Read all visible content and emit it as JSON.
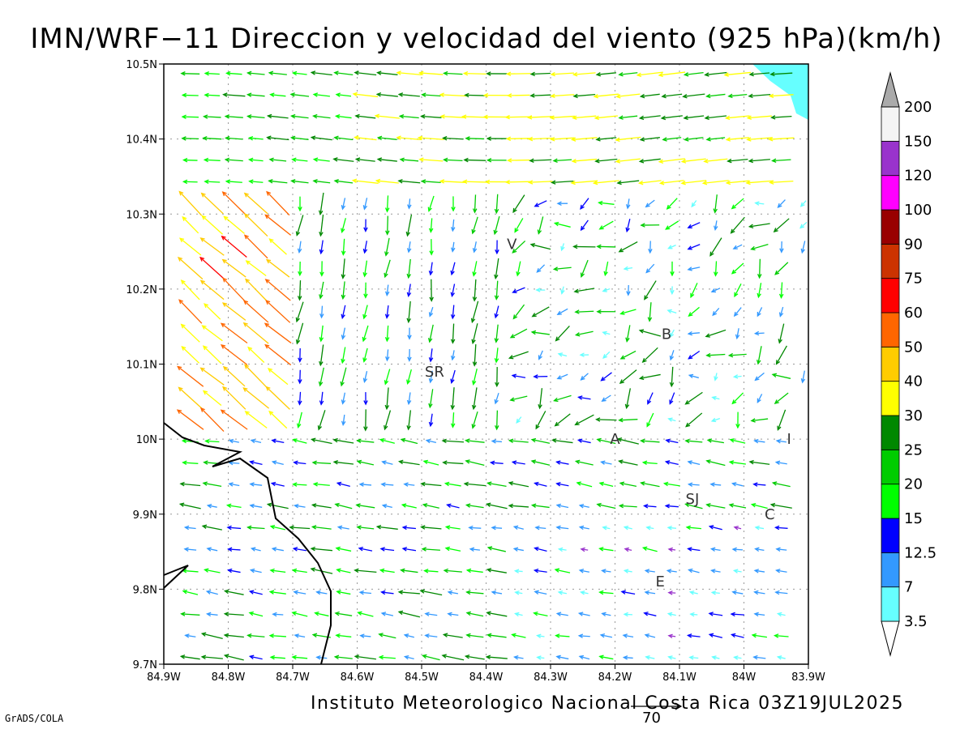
{
  "title": "IMN/WRF−11 Direccion y velocidad del viento (925 hPa)(km/h)",
  "footer": "Instituto Meteorologico Nacional Costa Rica 03Z19JUL2025",
  "credit": "GrADS/COLA",
  "reference_vector": {
    "label": "70",
    "value": 70,
    "unit": "km/h"
  },
  "map": {
    "x_ticks": [
      "84.9W",
      "84.8W",
      "84.7W",
      "84.6W",
      "84.5W",
      "84.4W",
      "84.3W",
      "84.2W",
      "84.1W",
      "84W",
      "83.9W"
    ],
    "y_ticks": [
      "10.5N",
      "10.4N",
      "10.3N",
      "10.2N",
      "10.1N",
      "10N",
      "9.9N",
      "9.8N",
      "9.7N"
    ],
    "lon_range": [
      -84.9,
      -83.9
    ],
    "lat_range": [
      9.7,
      10.5
    ],
    "grid": "dotted"
  },
  "cities": [
    {
      "label": "V",
      "lon": -84.36,
      "lat": 10.26
    },
    {
      "label": "SR",
      "lon": -84.48,
      "lat": 10.09
    },
    {
      "label": "B",
      "lon": -84.12,
      "lat": 10.14
    },
    {
      "label": "A",
      "lon": -84.2,
      "lat": 10.0
    },
    {
      "label": "I",
      "lon": -83.93,
      "lat": 10.0
    },
    {
      "label": "SJ",
      "lon": -84.08,
      "lat": 9.92
    },
    {
      "label": "C",
      "lon": -83.96,
      "lat": 9.9
    },
    {
      "label": "E",
      "lon": -84.13,
      "lat": 9.81
    }
  ],
  "colorbar": {
    "levels": [
      "3.5",
      "7",
      "12.5",
      "15",
      "20",
      "25",
      "30",
      "40",
      "50",
      "60",
      "75",
      "90",
      "100",
      "120",
      "150",
      "200"
    ],
    "colors": [
      "#66ffff",
      "#3399ff",
      "#0000ff",
      "#00ff00",
      "#00cc00",
      "#008800",
      "#ffff00",
      "#ffcc00",
      "#ff6600",
      "#ff0000",
      "#cc3300",
      "#990000",
      "#ff00ff",
      "#9933cc",
      "#f4f4f4",
      "#aaaaaa"
    ]
  },
  "ocean_color": "#66ffff"
}
